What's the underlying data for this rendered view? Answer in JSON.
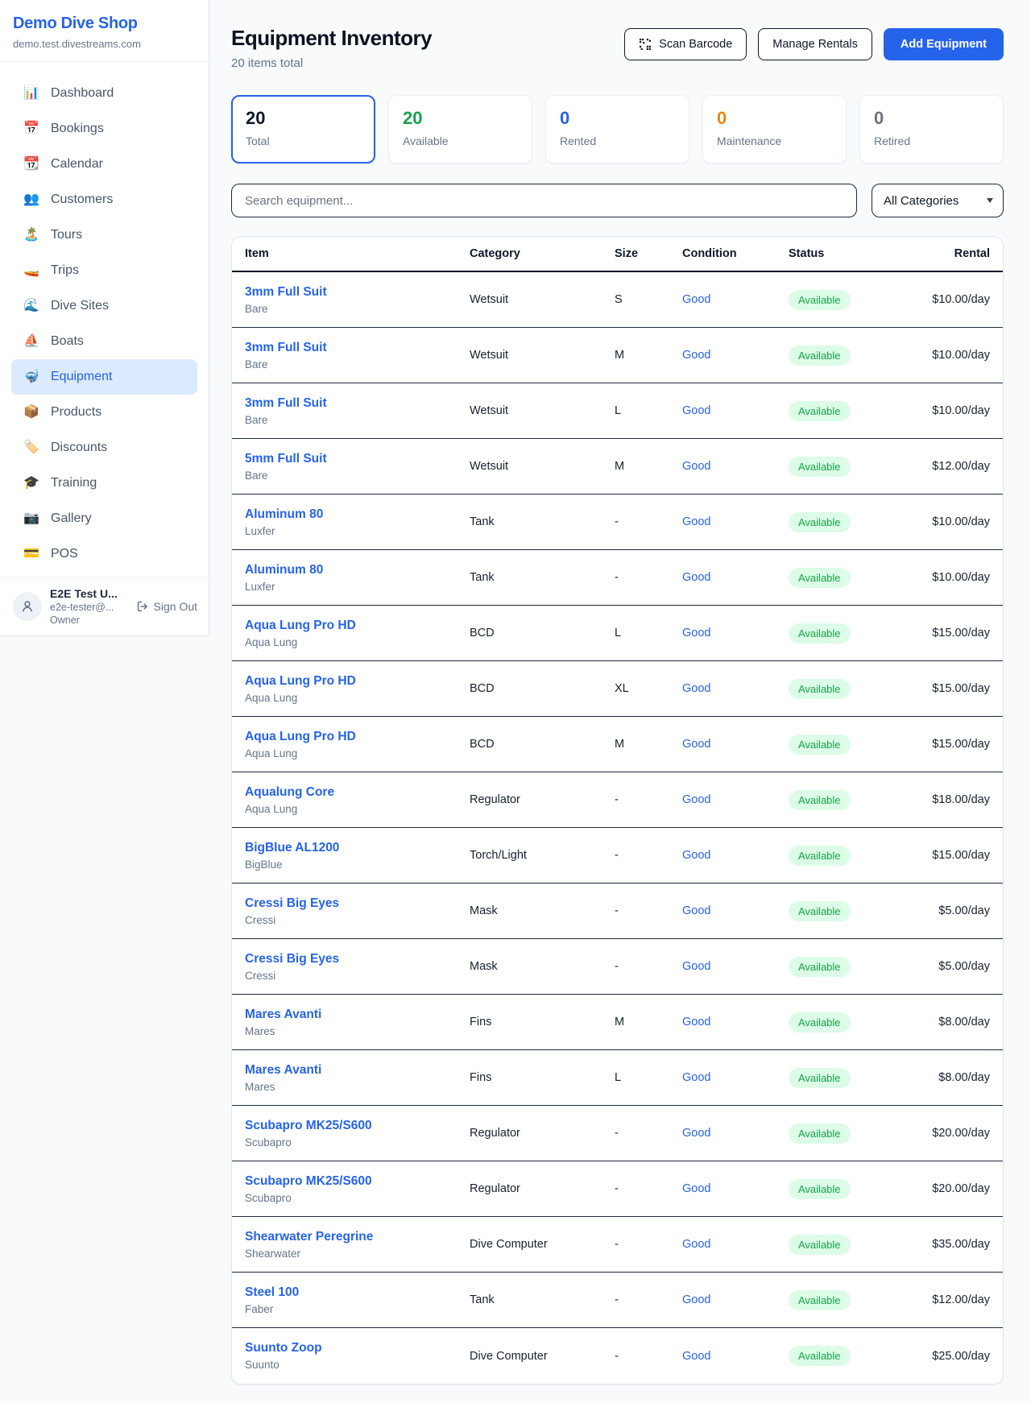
{
  "sidebar": {
    "shop_name": "Demo Dive Shop",
    "shop_domain": "demo.test.divestreams.com",
    "items": [
      {
        "icon": "📊",
        "label": "Dashboard",
        "active": false
      },
      {
        "icon": "📅",
        "label": "Bookings",
        "active": false
      },
      {
        "icon": "📆",
        "label": "Calendar",
        "active": false
      },
      {
        "icon": "👥",
        "label": "Customers",
        "active": false
      },
      {
        "icon": "🏝️",
        "label": "Tours",
        "active": false
      },
      {
        "icon": "🚤",
        "label": "Trips",
        "active": false
      },
      {
        "icon": "🌊",
        "label": "Dive Sites",
        "active": false
      },
      {
        "icon": "⛵",
        "label": "Boats",
        "active": false
      },
      {
        "icon": "🤿",
        "label": "Equipment",
        "active": true
      },
      {
        "icon": "📦",
        "label": "Products",
        "active": false
      },
      {
        "icon": "🏷️",
        "label": "Discounts",
        "active": false
      },
      {
        "icon": "🎓",
        "label": "Training",
        "active": false
      },
      {
        "icon": "📷",
        "label": "Gallery",
        "active": false
      },
      {
        "icon": "💳",
        "label": "POS",
        "active": false
      }
    ],
    "user": {
      "name": "E2E Test U...",
      "email": "e2e-tester@...",
      "role": "Owner",
      "sign_out_label": "Sign Out"
    }
  },
  "header": {
    "title": "Equipment Inventory",
    "subtitle": "20 items total",
    "scan_button": "Scan Barcode",
    "manage_button": "Manage Rentals",
    "add_button": "Add Equipment"
  },
  "stats": [
    {
      "value": "20",
      "label": "Total",
      "color": "#0f172a",
      "selected": true
    },
    {
      "value": "20",
      "label": "Available",
      "color": "#16a34a",
      "selected": false
    },
    {
      "value": "0",
      "label": "Rented",
      "color": "#2563eb",
      "selected": false
    },
    {
      "value": "0",
      "label": "Maintenance",
      "color": "#e8890c",
      "selected": false
    },
    {
      "value": "0",
      "label": "Retired",
      "color": "#6b7280",
      "selected": false
    }
  ],
  "filters": {
    "search_placeholder": "Search equipment...",
    "category_selected": "All Categories"
  },
  "table": {
    "columns": [
      "Item",
      "Category",
      "Size",
      "Condition",
      "Status",
      "Rental"
    ],
    "rows": [
      {
        "name": "3mm Full Suit",
        "brand": "Bare",
        "category": "Wetsuit",
        "size": "S",
        "condition": "Good",
        "status": "Available",
        "rental": "$10.00/day"
      },
      {
        "name": "3mm Full Suit",
        "brand": "Bare",
        "category": "Wetsuit",
        "size": "M",
        "condition": "Good",
        "status": "Available",
        "rental": "$10.00/day"
      },
      {
        "name": "3mm Full Suit",
        "brand": "Bare",
        "category": "Wetsuit",
        "size": "L",
        "condition": "Good",
        "status": "Available",
        "rental": "$10.00/day"
      },
      {
        "name": "5mm Full Suit",
        "brand": "Bare",
        "category": "Wetsuit",
        "size": "M",
        "condition": "Good",
        "status": "Available",
        "rental": "$12.00/day"
      },
      {
        "name": "Aluminum 80",
        "brand": "Luxfer",
        "category": "Tank",
        "size": "-",
        "condition": "Good",
        "status": "Available",
        "rental": "$10.00/day"
      },
      {
        "name": "Aluminum 80",
        "brand": "Luxfer",
        "category": "Tank",
        "size": "-",
        "condition": "Good",
        "status": "Available",
        "rental": "$10.00/day"
      },
      {
        "name": "Aqua Lung Pro HD",
        "brand": "Aqua Lung",
        "category": "BCD",
        "size": "L",
        "condition": "Good",
        "status": "Available",
        "rental": "$15.00/day"
      },
      {
        "name": "Aqua Lung Pro HD",
        "brand": "Aqua Lung",
        "category": "BCD",
        "size": "XL",
        "condition": "Good",
        "status": "Available",
        "rental": "$15.00/day"
      },
      {
        "name": "Aqua Lung Pro HD",
        "brand": "Aqua Lung",
        "category": "BCD",
        "size": "M",
        "condition": "Good",
        "status": "Available",
        "rental": "$15.00/day"
      },
      {
        "name": "Aqualung Core",
        "brand": "Aqua Lung",
        "category": "Regulator",
        "size": "-",
        "condition": "Good",
        "status": "Available",
        "rental": "$18.00/day"
      },
      {
        "name": "BigBlue AL1200",
        "brand": "BigBlue",
        "category": "Torch/Light",
        "size": "-",
        "condition": "Good",
        "status": "Available",
        "rental": "$15.00/day"
      },
      {
        "name": "Cressi Big Eyes",
        "brand": "Cressi",
        "category": "Mask",
        "size": "-",
        "condition": "Good",
        "status": "Available",
        "rental": "$5.00/day"
      },
      {
        "name": "Cressi Big Eyes",
        "brand": "Cressi",
        "category": "Mask",
        "size": "-",
        "condition": "Good",
        "status": "Available",
        "rental": "$5.00/day"
      },
      {
        "name": "Mares Avanti",
        "brand": "Mares",
        "category": "Fins",
        "size": "M",
        "condition": "Good",
        "status": "Available",
        "rental": "$8.00/day"
      },
      {
        "name": "Mares Avanti",
        "brand": "Mares",
        "category": "Fins",
        "size": "L",
        "condition": "Good",
        "status": "Available",
        "rental": "$8.00/day"
      },
      {
        "name": "Scubapro MK25/S600",
        "brand": "Scubapro",
        "category": "Regulator",
        "size": "-",
        "condition": "Good",
        "status": "Available",
        "rental": "$20.00/day"
      },
      {
        "name": "Scubapro MK25/S600",
        "brand": "Scubapro",
        "category": "Regulator",
        "size": "-",
        "condition": "Good",
        "status": "Available",
        "rental": "$20.00/day"
      },
      {
        "name": "Shearwater Peregrine",
        "brand": "Shearwater",
        "category": "Dive Computer",
        "size": "-",
        "condition": "Good",
        "status": "Available",
        "rental": "$35.00/day"
      },
      {
        "name": "Steel 100",
        "brand": "Faber",
        "category": "Tank",
        "size": "-",
        "condition": "Good",
        "status": "Available",
        "rental": "$12.00/day"
      },
      {
        "name": "Suunto Zoop",
        "brand": "Suunto",
        "category": "Dive Computer",
        "size": "-",
        "condition": "Good",
        "status": "Available",
        "rental": "$25.00/day"
      }
    ]
  },
  "colors": {
    "accent_blue": "#2563eb",
    "active_nav_bg": "#dbeafe",
    "page_bg": "#f8fafc",
    "available_green": "#16a34a",
    "available_badge_bg": "#dcfce7",
    "maintenance_orange": "#e8890c",
    "retired_gray": "#6b7280",
    "muted_text": "#64748b",
    "dark_border": "#1e293b"
  }
}
